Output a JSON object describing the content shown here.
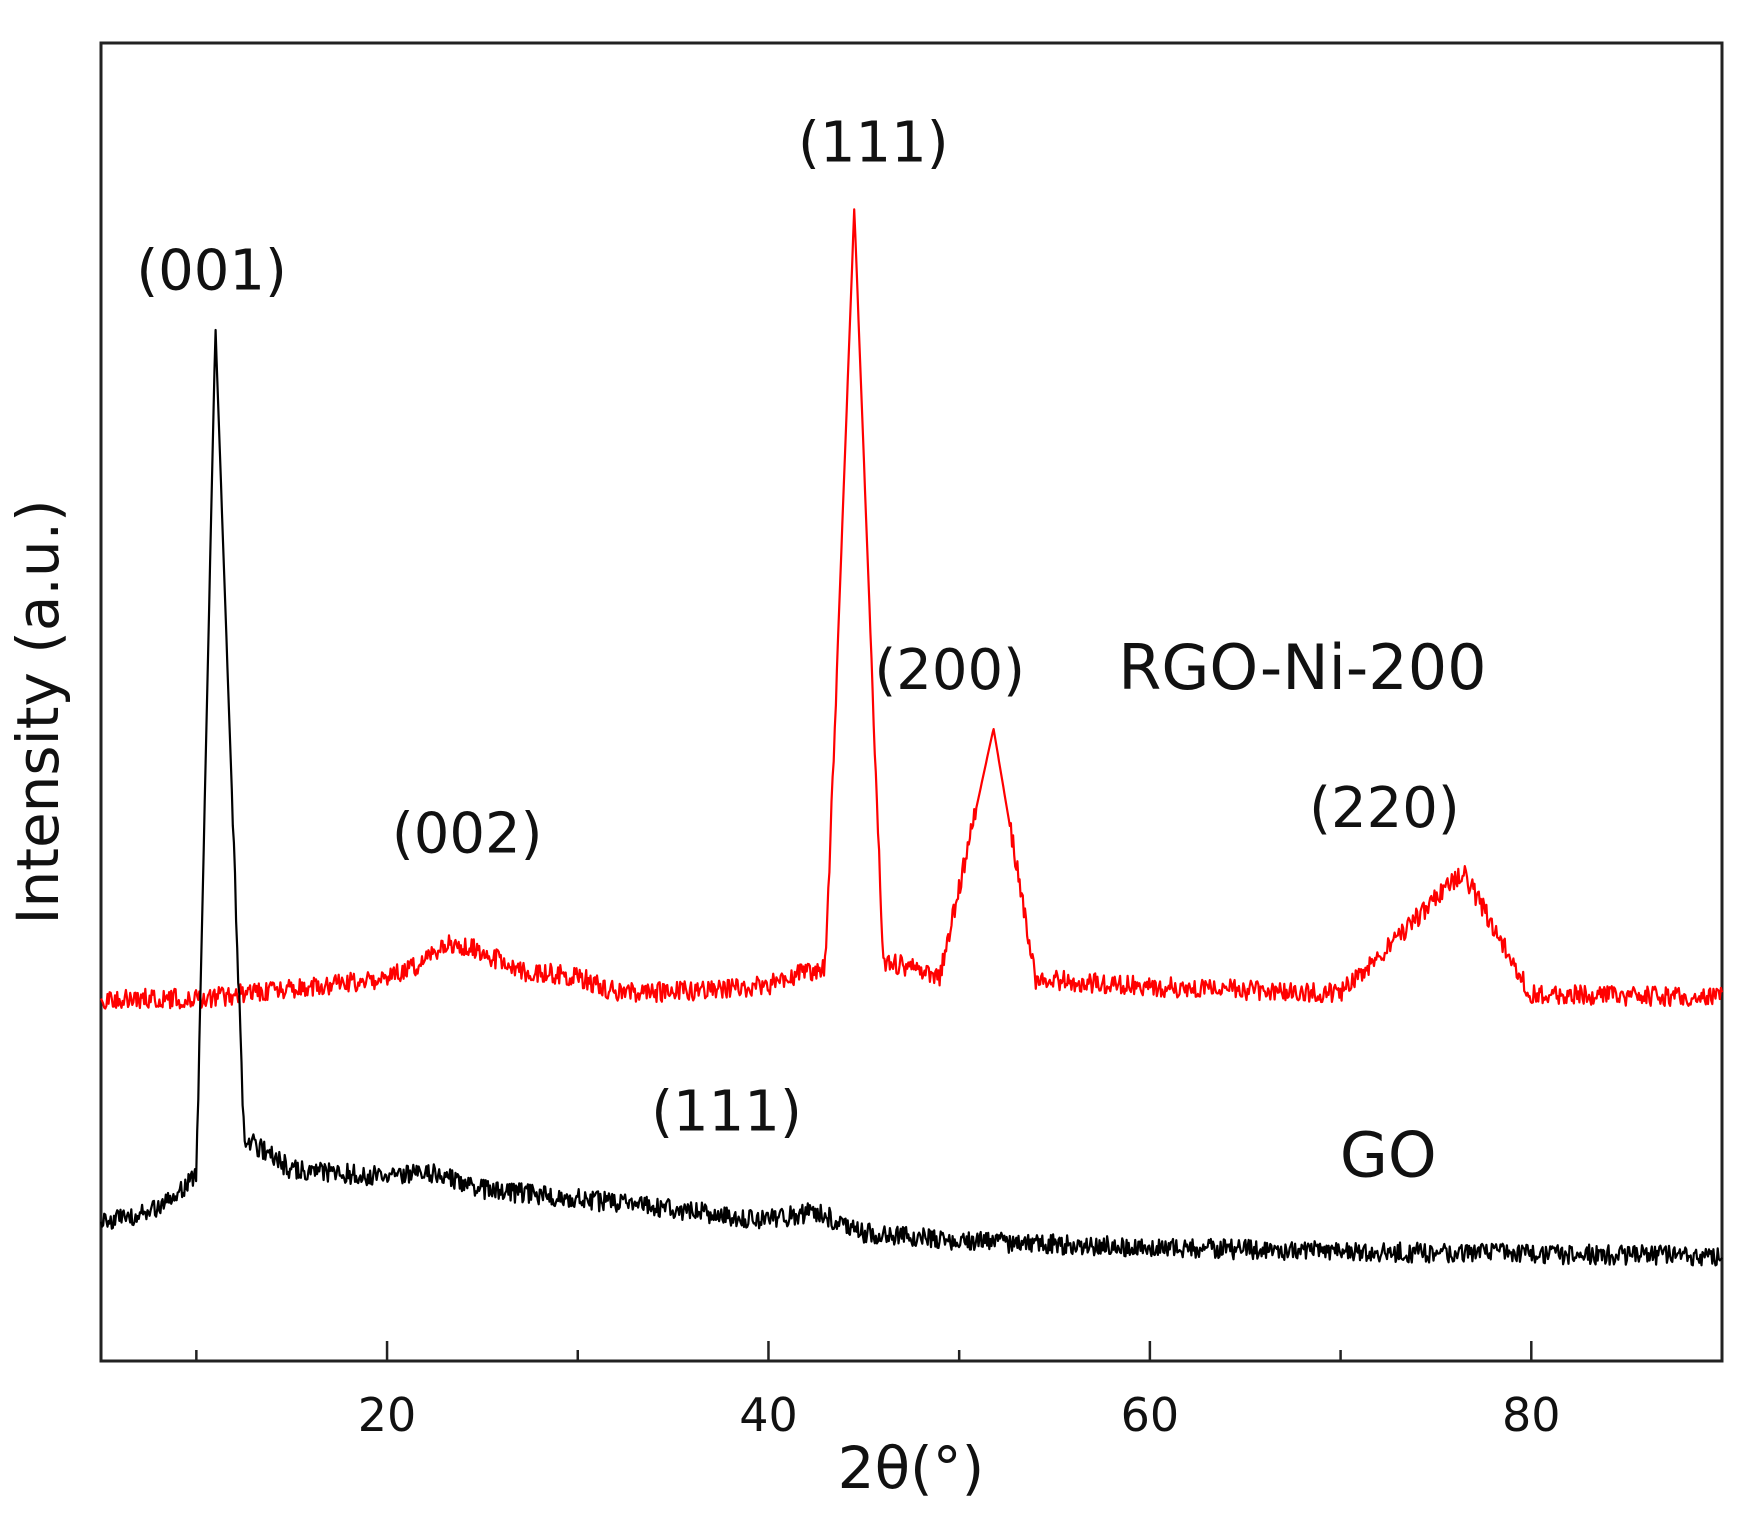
{
  "chart_data": {
    "type": "line",
    "title": "",
    "xlabel": "2θ(°)",
    "ylabel": "Intensity (a.u.)",
    "xlim": [
      5,
      90
    ],
    "ylim": [
      0,
      100
    ],
    "x_ticks_major": [
      20,
      40,
      60,
      80
    ],
    "x_ticks_minor": [
      10,
      30,
      50,
      70,
      90
    ],
    "y_ticks": [],
    "grid": false,
    "legend": "none",
    "series": [
      {
        "name": "RGO-Ni-200",
        "color": "#ff0000",
        "baseline": 27.6,
        "points": [
          {
            "x": 5,
            "y": 27.5
          },
          {
            "x": 10,
            "y": 27.5
          },
          {
            "x": 15,
            "y": 28.2
          },
          {
            "x": 20,
            "y": 29.0
          },
          {
            "x": 22,
            "y": 30.3
          },
          {
            "x": 23.5,
            "y": 31.8
          },
          {
            "x": 25,
            "y": 31.0
          },
          {
            "x": 27,
            "y": 29.6
          },
          {
            "x": 30,
            "y": 29.2
          },
          {
            "x": 32,
            "y": 28.0
          },
          {
            "x": 35,
            "y": 28.0
          },
          {
            "x": 40,
            "y": 28.5
          },
          {
            "x": 43,
            "y": 30.0
          },
          {
            "x": 44.5,
            "y": 87.5
          },
          {
            "x": 46,
            "y": 30.4
          },
          {
            "x": 49,
            "y": 29.2
          },
          {
            "x": 51.8,
            "y": 48.0
          },
          {
            "x": 54,
            "y": 29.0
          },
          {
            "x": 60,
            "y": 28.4
          },
          {
            "x": 70,
            "y": 27.9
          },
          {
            "x": 76.4,
            "y": 37.1
          },
          {
            "x": 80,
            "y": 27.8
          },
          {
            "x": 90,
            "y": 27.6
          }
        ]
      },
      {
        "name": "GO",
        "color": "#000000",
        "baseline": 10.5,
        "points": [
          {
            "x": 5,
            "y": 10.5
          },
          {
            "x": 8,
            "y": 11.5
          },
          {
            "x": 10,
            "y": 14.0
          },
          {
            "x": 11.0,
            "y": 78.5
          },
          {
            "x": 12.5,
            "y": 17.0
          },
          {
            "x": 15,
            "y": 14.5
          },
          {
            "x": 20,
            "y": 14.0
          },
          {
            "x": 22,
            "y": 14.4
          },
          {
            "x": 25,
            "y": 13.0
          },
          {
            "x": 30,
            "y": 12.3
          },
          {
            "x": 35,
            "y": 11.5
          },
          {
            "x": 40,
            "y": 10.7
          },
          {
            "x": 42.5,
            "y": 11.3
          },
          {
            "x": 45,
            "y": 9.7
          },
          {
            "x": 50,
            "y": 9.1
          },
          {
            "x": 60,
            "y": 8.6
          },
          {
            "x": 70,
            "y": 8.3
          },
          {
            "x": 80,
            "y": 8.1
          },
          {
            "x": 90,
            "y": 8.0
          }
        ]
      }
    ],
    "annotations": [
      {
        "text": "(001)",
        "x": 10.8,
        "y": 81.3
      },
      {
        "text": "(111)",
        "x": 45.5,
        "y": 91.0
      },
      {
        "text": "(200)",
        "x": 49.5,
        "y": 51.0
      },
      {
        "text": "(002)",
        "x": 24.2,
        "y": 38.6
      },
      {
        "text": "(220)",
        "x": 72.3,
        "y": 40.5
      },
      {
        "text": "(111)",
        "x": 37.8,
        "y": 17.5
      }
    ],
    "series_labels": [
      {
        "text": "RGO-Ni-200",
        "x": 68,
        "y": 51.0
      },
      {
        "text": "GO",
        "x": 72.5,
        "y": 14.0
      }
    ]
  }
}
